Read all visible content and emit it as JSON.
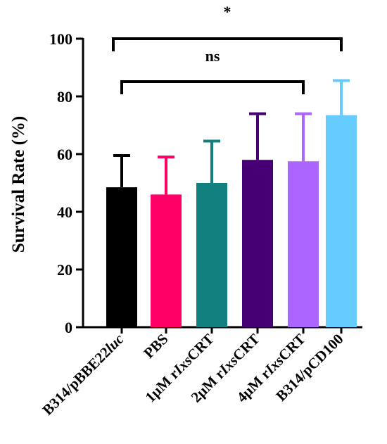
{
  "chart_data": {
    "type": "bar",
    "title": "",
    "xlabel": "",
    "ylabel": "Survival Rate (%)",
    "ylim": [
      0,
      100
    ],
    "yticks": [
      0,
      20,
      40,
      60,
      80,
      100
    ],
    "grid": false,
    "legend": "none",
    "categories": [
      {
        "parts": [
          {
            "t": "B314/pBBE22",
            "i": false
          },
          {
            "t": "luc",
            "i": true
          }
        ],
        "text": "B314/pBBE22luc"
      },
      {
        "parts": [
          {
            "t": "PBS",
            "i": false
          }
        ],
        "text": "PBS"
      },
      {
        "parts": [
          {
            "t": "1μM r",
            "i": false
          },
          {
            "t": "Ixs",
            "i": true
          },
          {
            "t": "CRT",
            "i": false
          }
        ],
        "text": "1μM rIxsCRT"
      },
      {
        "parts": [
          {
            "t": "2μM r",
            "i": false
          },
          {
            "t": "Ixs",
            "i": true
          },
          {
            "t": "CRT",
            "i": false
          }
        ],
        "text": "2μM rIxsCRT"
      },
      {
        "parts": [
          {
            "t": "4μM r",
            "i": false
          },
          {
            "t": "Ixs",
            "i": true
          },
          {
            "t": "CRT",
            "i": false
          }
        ],
        "text": "4μM rIxsCRT"
      },
      {
        "parts": [
          {
            "t": "B314/pCD100",
            "i": false
          }
        ],
        "text": "B314/pCD100"
      }
    ],
    "values": [
      48.5,
      46,
      50,
      58,
      57.5,
      73.5
    ],
    "errors": [
      11,
      13,
      14.5,
      16,
      16.5,
      12
    ],
    "colors": [
      "#000000",
      "#ff0066",
      "#138080",
      "#460073",
      "#aa66ff",
      "#66ccff"
    ],
    "significance": [
      {
        "from": 0,
        "to": 5,
        "label": "*"
      },
      {
        "from": 0,
        "to": 4,
        "label": "ns"
      }
    ]
  }
}
